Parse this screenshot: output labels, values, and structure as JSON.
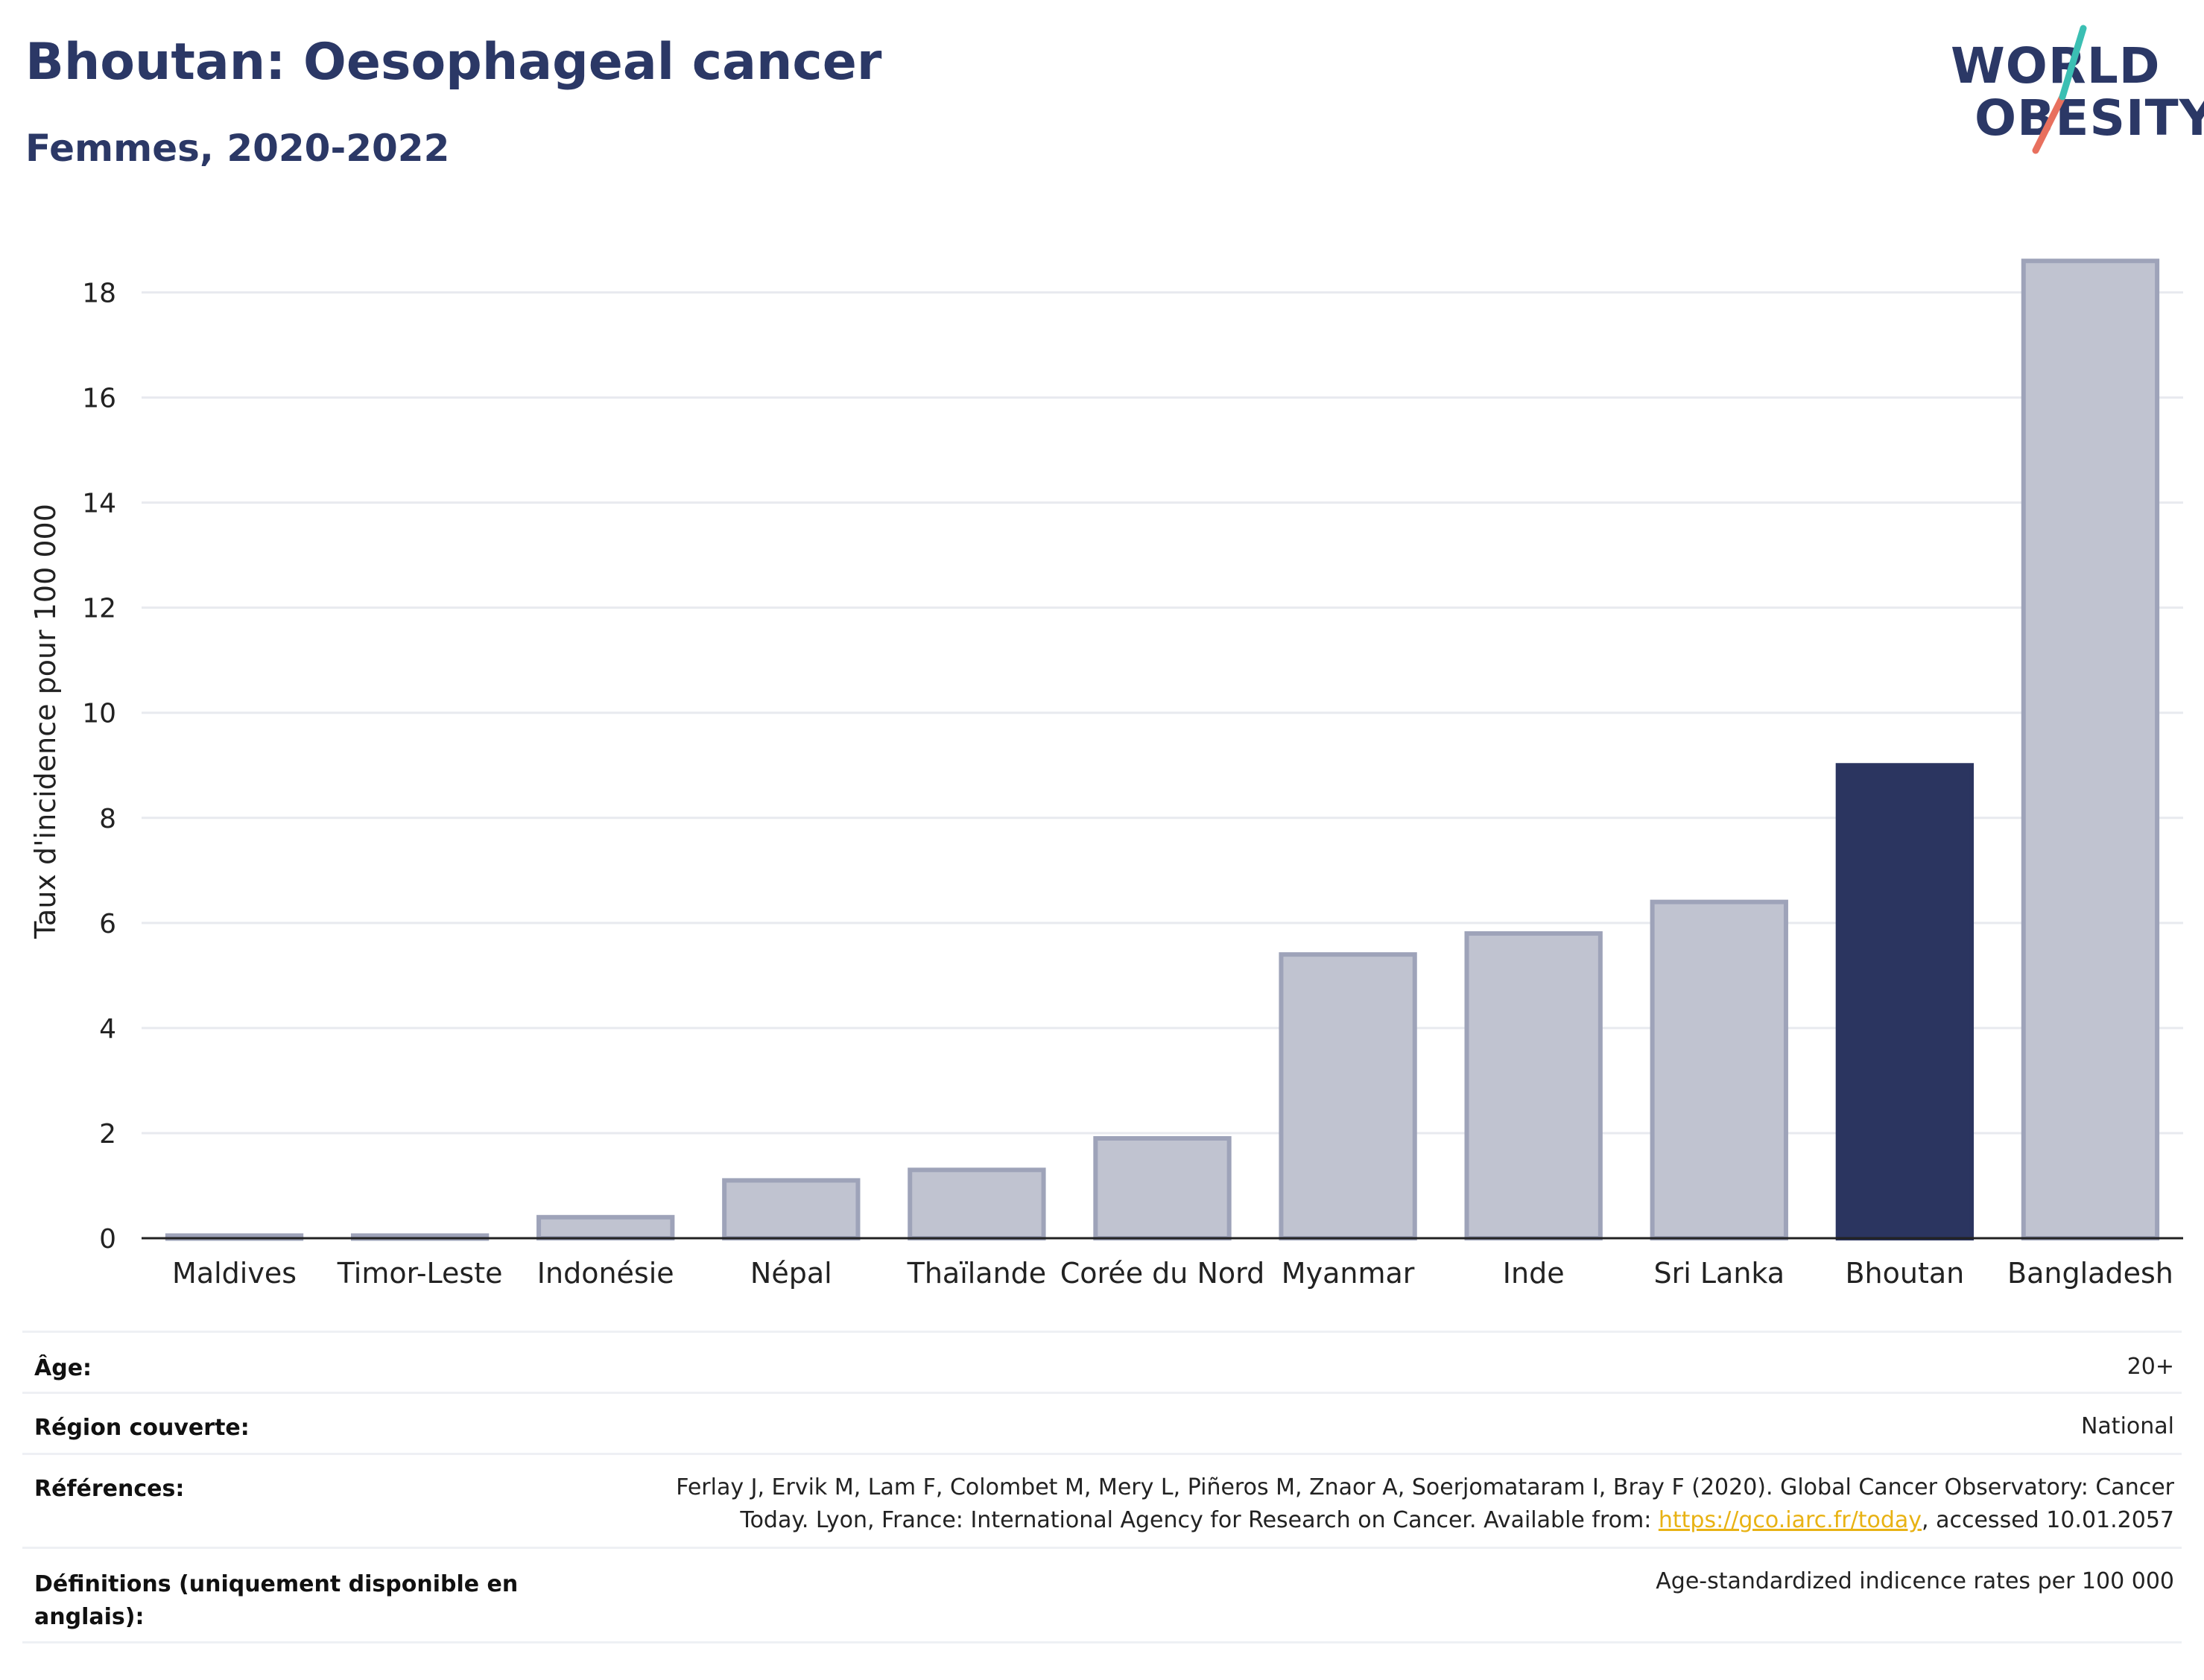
{
  "title": "Bhoutan: Oesophageal cancer",
  "subtitle": "Femmes, 2020-2022",
  "logo": {
    "line1": "WORLD",
    "line2": "OBESITY"
  },
  "colors": {
    "highlight": "#2b3560",
    "bar_fill": "#c0c3d0",
    "bar_stroke": "#9ea3b9",
    "title": "#2b3866",
    "grid": "#e8eaef",
    "logo_teal": "#3bbfb3",
    "logo_coral": "#e8705e",
    "link": "#e8b214"
  },
  "chart_data": {
    "type": "bar",
    "categories": [
      "Maldives",
      "Timor-Leste",
      "Indonésie",
      "Népal",
      "Thaïlande",
      "Corée du Nord",
      "Myanmar",
      "Inde",
      "Sri Lanka",
      "Bhoutan",
      "Bangladesh"
    ],
    "values": [
      0.05,
      0.05,
      0.4,
      1.1,
      1.3,
      1.9,
      5.4,
      5.8,
      6.4,
      9.0,
      18.6
    ],
    "highlight": "Bhoutan",
    "ylabel": "Taux d'incidence pour 100 000",
    "xlabel": "",
    "ylim": [
      0,
      19
    ],
    "yticks": [
      0,
      2,
      4,
      6,
      8,
      10,
      12,
      14,
      16,
      18
    ],
    "grid": true
  },
  "info": {
    "age_label": "Âge:",
    "age_value": "20+",
    "region_label": "Région couverte:",
    "region_value": "National",
    "references_label": "Références:",
    "references_line1": "Ferlay J, Ervik M, Lam F, Colombet M, Mery L, Piñeros M, Znaor A, Soerjomataram I, Bray F (2020). Global Cancer Observatory: Cancer",
    "references_line2_pre": "Today. Lyon, France: International Agency for Research on Cancer. Available from: ",
    "references_link": "https://gco.iarc.fr/today",
    "references_line2_post": ", accessed 10.01.2057",
    "definitions_label_line1": "Définitions (uniquement disponible en",
    "definitions_label_line2": "anglais):",
    "definitions_value": "Age-standardized indicence rates per 100 000"
  }
}
